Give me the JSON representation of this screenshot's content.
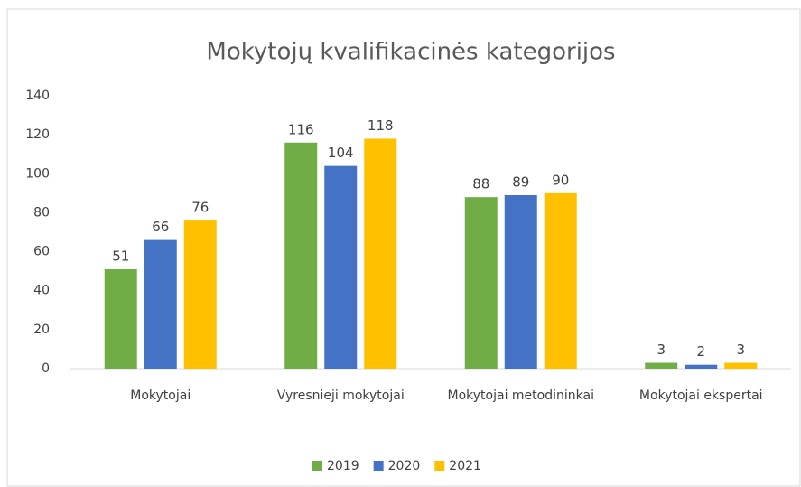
{
  "chart_data": {
    "type": "bar",
    "title": "Mokytojų kvalifikacinės kategorijos",
    "categories": [
      "Mokytojai",
      "Vyresnieji mokytojai",
      "Mokytojai metodininkai",
      "Mokytojai ekspertai"
    ],
    "series": [
      {
        "name": "2019",
        "color": "#70ad47",
        "values": [
          51,
          116,
          88,
          3
        ]
      },
      {
        "name": "2020",
        "color": "#4472c4",
        "values": [
          66,
          104,
          89,
          2
        ]
      },
      {
        "name": "2021",
        "color": "#ffc000",
        "values": [
          76,
          118,
          90,
          3
        ]
      }
    ],
    "ylim": [
      0,
      140
    ],
    "yticks": [
      0,
      20,
      40,
      60,
      80,
      100,
      120,
      140
    ],
    "grid": false,
    "legend": "bottom"
  }
}
